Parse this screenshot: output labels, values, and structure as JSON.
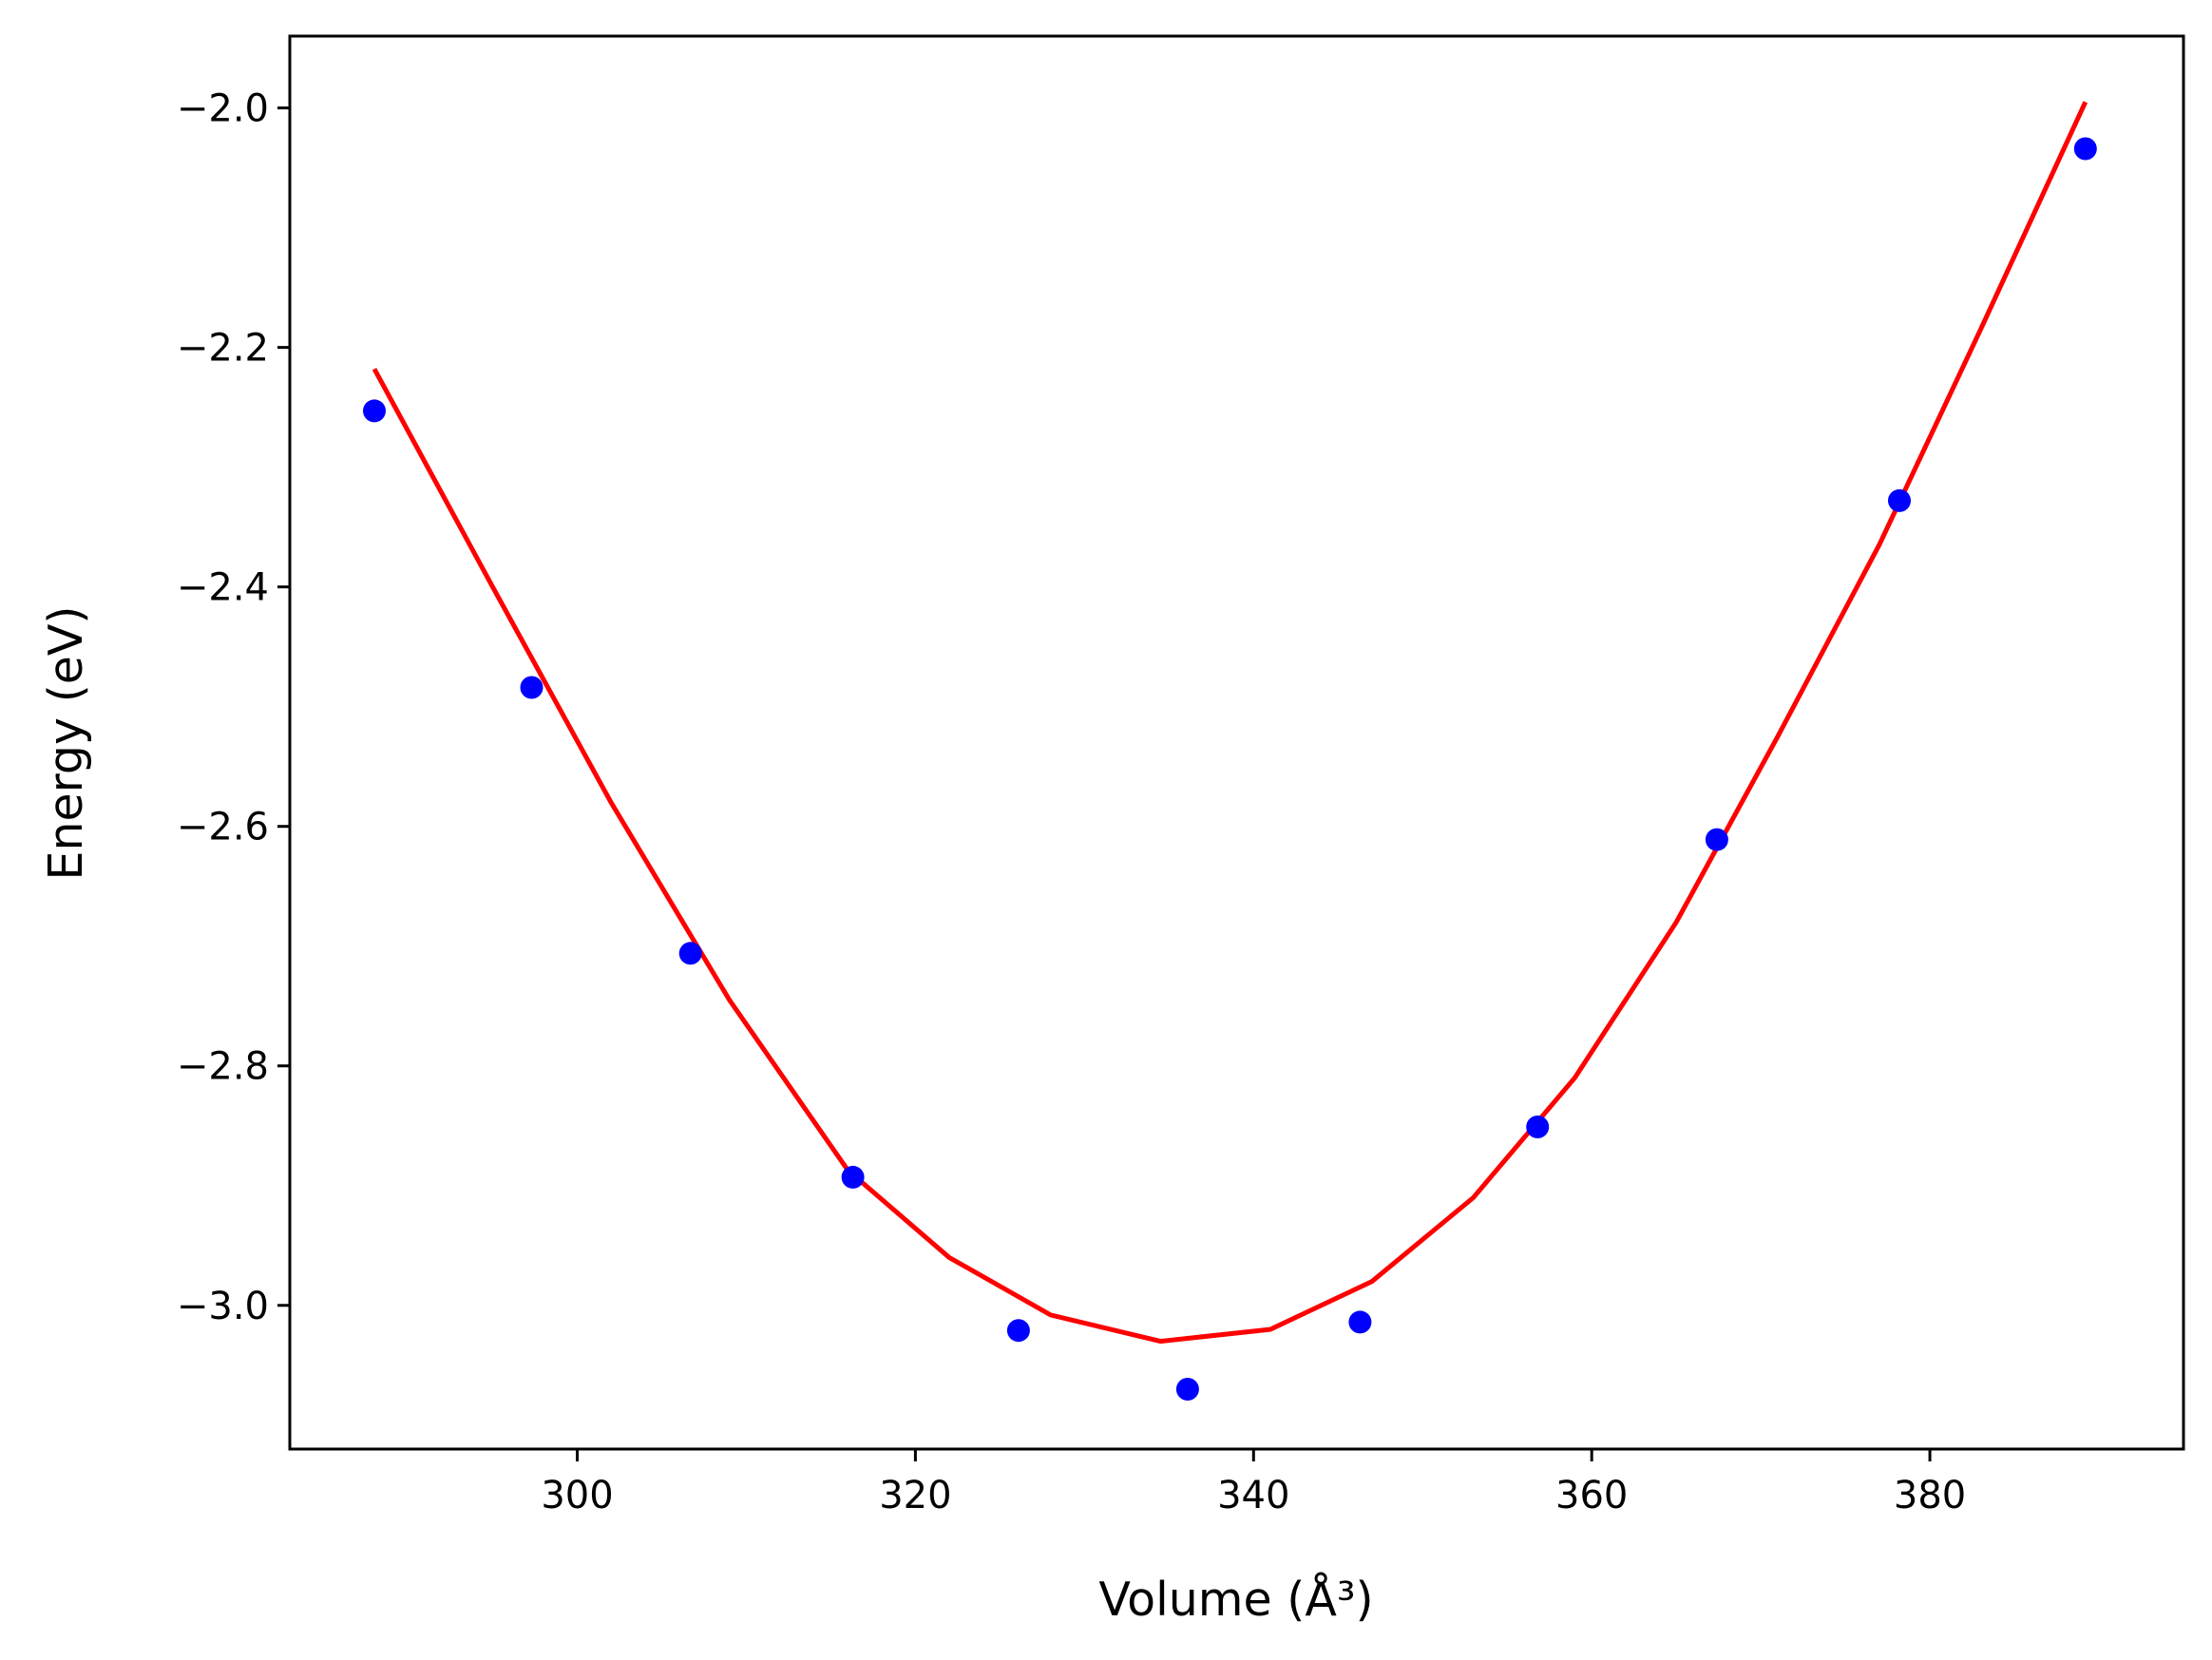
{
  "chart_data": {
    "type": "scatter",
    "xlabel": "Volume (Å³)",
    "ylabel": "Energy (eV)",
    "xlim": [
      283,
      395
    ],
    "ylim": [
      -3.12,
      -1.94
    ],
    "xticks": [
      300,
      320,
      340,
      360,
      380
    ],
    "yticks": [
      -3.0,
      -2.8,
      -2.6,
      -2.4,
      -2.2,
      -2.0
    ],
    "xtick_labels": [
      "300",
      "320",
      "340",
      "360",
      "380"
    ],
    "ytick_labels": [
      "−3.0",
      "−2.8",
      "−2.6",
      "−2.4",
      "−2.2",
      "−2.0"
    ],
    "grid": false,
    "series": [
      {
        "kind": "points",
        "color": "#0000ff",
        "x": [
          288.0,
          297.3,
          306.7,
          316.3,
          326.1,
          336.1,
          346.3,
          356.8,
          367.4,
          378.2,
          389.2
        ],
        "y": [
          -2.253,
          -2.484,
          -2.706,
          -2.893,
          -3.021,
          -3.07,
          -3.014,
          -2.851,
          -2.611,
          -2.328,
          -2.034
        ]
      },
      {
        "kind": "fit-line",
        "color": "#ff0000",
        "x": [
          288,
          295,
          302,
          309,
          316,
          322,
          328,
          334.5,
          341,
          347,
          353,
          359,
          365,
          371,
          377,
          383,
          389.2
        ],
        "y": [
          -2.218,
          -2.4,
          -2.58,
          -2.745,
          -2.887,
          -2.96,
          -3.008,
          -3.03,
          -3.02,
          -2.98,
          -2.91,
          -2.81,
          -2.68,
          -2.525,
          -2.365,
          -2.185,
          -1.995
        ]
      }
    ]
  }
}
